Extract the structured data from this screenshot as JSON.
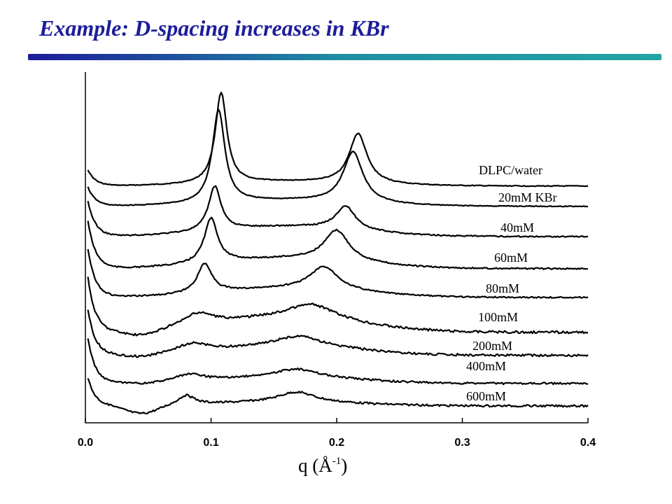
{
  "slide": {
    "title": "Example: D-spacing increases in KBr",
    "rule_gradient": [
      "#1c1c9a",
      "#1f8fa3",
      "#22a4a4"
    ]
  },
  "chart_data": {
    "type": "line",
    "title": "",
    "xlabel": {
      "base": "q (Å",
      "sup": "-1",
      "close": ")"
    },
    "ylabel": "",
    "xlim": [
      0.0,
      0.4
    ],
    "xticks": [
      "0.0",
      "0.1",
      "0.2",
      "0.3",
      "0.4"
    ],
    "grid": false,
    "line_color": "#000000",
    "series": [
      {
        "name": "DLPC/water",
        "peaks": [
          0.108,
          0.217
        ],
        "amplitudes": [
          1.0,
          0.55
        ]
      },
      {
        "name": "20mM KBr",
        "peaks": [
          0.106,
          0.213
        ],
        "amplitudes": [
          0.95,
          0.52
        ]
      },
      {
        "name": "40mM",
        "peaks": [
          0.103,
          0.207
        ],
        "amplitudes": [
          0.85,
          0.45
        ]
      },
      {
        "name": "60mM",
        "peaks": [
          0.1,
          0.2
        ],
        "amplitudes": [
          0.8,
          0.55
        ]
      },
      {
        "name": "80mM",
        "peaks": [
          0.095,
          0.19
        ],
        "amplitudes": [
          0.6,
          0.48
        ]
      },
      {
        "name": "100mM",
        "peaks": [
          0.09,
          0.18
        ],
        "amplitudes": [
          0.3,
          0.35
        ]
      },
      {
        "name": "200mM",
        "peaks": [
          0.085,
          0.17
        ],
        "amplitudes": [
          0.22,
          0.28
        ]
      },
      {
        "name": "400mM",
        "peaks": [
          0.083,
          0.168
        ],
        "amplitudes": [
          0.2,
          0.25
        ]
      },
      {
        "name": "600mM",
        "peaks": [
          0.08,
          0.168
        ],
        "amplitudes": [
          0.22,
          0.25
        ]
      }
    ]
  }
}
